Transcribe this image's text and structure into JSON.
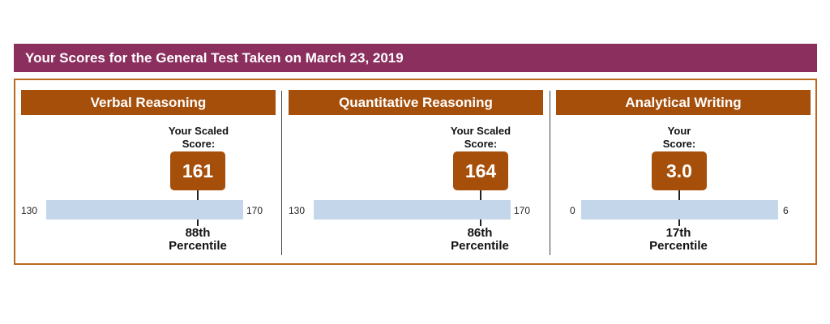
{
  "header": {
    "title": "Your Scores for the General Test Taken on March 23, 2019"
  },
  "sections": [
    {
      "title": "Verbal Reasoning",
      "score_label_line1": "Your Scaled",
      "score_label_line2": "Score:",
      "score": "161",
      "scale_min": "130",
      "scale_max": "170",
      "percentile": "88th",
      "percentile_label": "Percentile"
    },
    {
      "title": "Quantitative Reasoning",
      "score_label_line1": "Your Scaled",
      "score_label_line2": "Score:",
      "score": "164",
      "scale_min": "130",
      "scale_max": "170",
      "percentile": "86th",
      "percentile_label": "Percentile"
    },
    {
      "title": "Analytical Writing",
      "score_label_line1": "Your",
      "score_label_line2": "Score:",
      "score": "3.0",
      "scale_min": "0",
      "scale_max": "6",
      "percentile": "17th",
      "percentile_label": "Percentile"
    }
  ],
  "colors": {
    "banner": "#8b2f5e",
    "section_header": "#a64f0b",
    "score_box": "#a64f0b",
    "frame_border": "#b86a1e",
    "scale_bar": "#c4d7ea"
  }
}
